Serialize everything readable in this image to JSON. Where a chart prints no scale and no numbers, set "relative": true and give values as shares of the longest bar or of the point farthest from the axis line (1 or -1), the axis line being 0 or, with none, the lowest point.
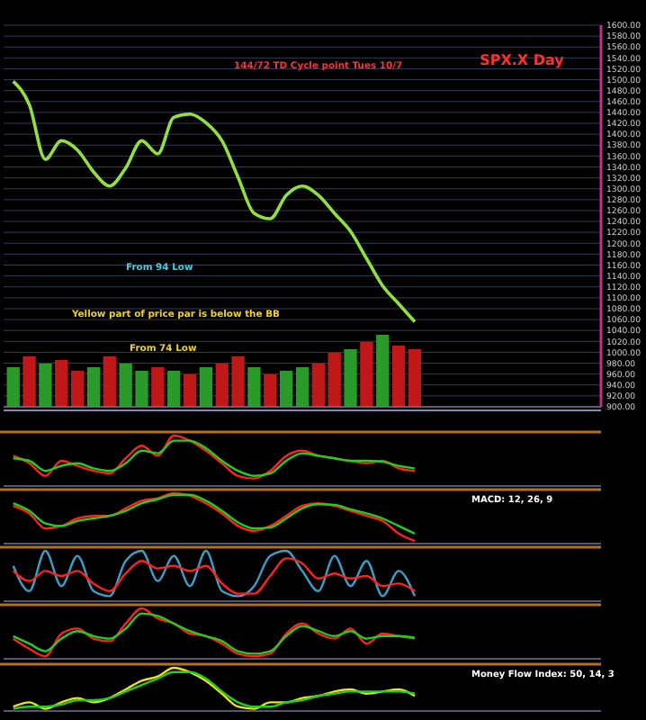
{
  "chart_data": [
    {
      "type": "line",
      "title": "SPX.X Day",
      "categories": [
        null,
        null,
        null,
        null,
        null,
        null,
        null,
        null,
        null,
        null,
        null,
        null,
        null,
        null,
        null,
        null,
        null,
        null,
        null,
        null,
        null,
        null,
        null,
        null,
        null,
        null,
        null,
        null,
        null,
        null,
        null,
        null,
        null,
        null,
        null,
        null,
        null
      ],
      "series": [
        {
          "color": "#8fe040",
          "values": [
            1497,
            1454,
            1354,
            1388,
            1371,
            1331,
            1305,
            1338,
            1388,
            1364,
            1431,
            1437,
            1421,
            1388,
            1321,
            1255,
            1245,
            1288,
            1305,
            1288,
            1255,
            1222,
            1172,
            1122,
            1089,
            1056,
            null,
            null,
            null,
            null,
            null,
            null,
            null,
            null,
            null,
            null,
            null
          ]
        }
      ],
      "ylim": [
        900,
        1600
      ],
      "yticks": [
        {
          "value": 900,
          "label": "900.00"
        },
        {
          "value": 920,
          "label": "920.00"
        },
        {
          "value": 940,
          "label": "940.00"
        },
        {
          "value": 960,
          "label": "960.00"
        },
        {
          "value": 980,
          "label": "980.00"
        },
        {
          "value": 1000,
          "label": "1000.00"
        },
        {
          "value": 1020,
          "label": "1020.00"
        },
        {
          "value": 1040,
          "label": "1040.00"
        },
        {
          "value": 1060,
          "label": "1060.00"
        },
        {
          "value": 1080,
          "label": "1080.00"
        },
        {
          "value": 1100,
          "label": "1100.00"
        },
        {
          "value": 1120,
          "label": "1120.00"
        },
        {
          "value": 1140,
          "label": "1140.00"
        },
        {
          "value": 1160,
          "label": "1160.00"
        },
        {
          "value": 1180,
          "label": "1180.00"
        },
        {
          "value": 1200,
          "label": "1200.00"
        },
        {
          "value": 1220,
          "label": "1220.00"
        },
        {
          "value": 1240,
          "label": "1240.00"
        },
        {
          "value": 1260,
          "label": "1260.00"
        },
        {
          "value": 1280,
          "label": "1280.00"
        },
        {
          "value": 1300,
          "label": "1300.00"
        },
        {
          "value": 1320,
          "label": "1320.00"
        },
        {
          "value": 1340,
          "label": "1340.00"
        },
        {
          "value": 1360,
          "label": "1360.00"
        },
        {
          "value": 1380,
          "label": "1380.00"
        },
        {
          "value": 1400,
          "label": "1400.00"
        },
        {
          "value": 1420,
          "label": "1420.00"
        },
        {
          "value": 1440,
          "label": "1440.00"
        },
        {
          "value": 1460,
          "label": "1460.00"
        },
        {
          "value": 1480,
          "label": "1480.00"
        },
        {
          "value": 1500,
          "label": "1500.00"
        },
        {
          "value": 1520,
          "label": "1520.00"
        },
        {
          "value": 1540,
          "label": "1540.00"
        },
        {
          "value": 1560,
          "label": "1560.00"
        },
        {
          "value": 1580,
          "label": "1580.00"
        },
        {
          "value": 1600,
          "label": "1600.00"
        }
      ],
      "grid": true,
      "annotations": [
        "144/72 TD Cycle point Tues 10/7",
        "Yellow part of price par is below the BB",
        "From 94 Low",
        "From 74 Low"
      ]
    },
    {
      "type": "bar",
      "relative": true,
      "categories": [
        null,
        null,
        null,
        null,
        null,
        null,
        null,
        null,
        null,
        null,
        null,
        null,
        null,
        null,
        null,
        null,
        null,
        null,
        null,
        null,
        null,
        null,
        null,
        null,
        null,
        null,
        null,
        null,
        null,
        null,
        null,
        null,
        null,
        null,
        null,
        null,
        null
      ],
      "values": [
        0.55,
        0.7,
        0.6,
        0.65,
        0.5,
        0.55,
        0.7,
        0.6,
        0.5,
        0.55,
        0.5,
        0.45,
        0.55,
        0.6,
        0.7,
        0.55,
        0.45,
        0.5,
        0.55,
        0.6,
        0.75,
        0.8,
        0.9,
        1,
        0.85,
        0.8,
        null,
        null,
        null,
        null,
        null,
        null,
        null,
        null,
        null,
        null,
        null
      ],
      "colors": [
        "#2a9a2a",
        "#c01818",
        "#2a9a2a",
        "#c01818",
        "#c01818",
        "#2a9a2a",
        "#c01818",
        "#2a9a2a",
        "#2a9a2a",
        "#c01818",
        "#2a9a2a",
        "#c01818",
        "#2a9a2a",
        "#c01818",
        "#c01818",
        "#2a9a2a",
        "#c01818",
        "#2a9a2a",
        "#2a9a2a",
        "#c01818",
        "#c01818",
        "#2a9a2a",
        "#c01818",
        "#2a9a2a",
        "#c01818",
        "#c01818",
        null,
        null,
        null,
        null,
        null,
        null,
        null,
        null,
        null,
        null,
        null
      ]
    },
    {
      "type": "line",
      "relative": true,
      "categories": [
        null,
        null,
        null,
        null,
        null,
        null,
        null,
        null,
        null,
        null,
        null,
        null,
        null,
        null,
        null,
        null,
        null,
        null,
        null,
        null,
        null,
        null,
        null,
        null,
        null,
        null,
        null,
        null,
        null,
        null,
        null,
        null,
        null,
        null,
        null,
        null,
        null
      ],
      "series": [
        {
          "color": "#ff2020",
          "values": [
            0.6,
            0.45,
            0.2,
            0.5,
            0.4,
            0.3,
            0.25,
            0.55,
            0.8,
            0.6,
            1,
            0.9,
            0.7,
            0.45,
            0.2,
            0.15,
            0.3,
            0.6,
            0.7,
            0.6,
            0.55,
            0.5,
            0.45,
            0.5,
            0.35,
            0.3,
            null,
            null,
            null,
            null,
            null,
            null,
            null,
            null,
            null,
            null,
            null
          ]
        },
        {
          "color": "#20d020",
          "values": [
            0.55,
            0.5,
            0.3,
            0.4,
            0.45,
            0.35,
            0.3,
            0.45,
            0.7,
            0.65,
            0.9,
            0.9,
            0.75,
            0.5,
            0.3,
            0.2,
            0.25,
            0.5,
            0.65,
            0.6,
            0.55,
            0.5,
            0.5,
            0.48,
            0.4,
            0.35,
            null,
            null,
            null,
            null,
            null,
            null,
            null,
            null,
            null,
            null,
            null
          ]
        }
      ]
    },
    {
      "type": "line",
      "title": "MACD: 12, 26, 9",
      "relative": true,
      "categories": [
        null,
        null,
        null,
        null,
        null,
        null,
        null,
        null,
        null,
        null,
        null,
        null,
        null,
        null,
        null,
        null,
        null,
        null,
        null,
        null,
        null,
        null,
        null,
        null,
        null,
        null,
        null,
        null,
        null,
        null,
        null,
        null,
        null,
        null,
        null,
        null,
        null
      ],
      "series": [
        {
          "color": "#ff2020",
          "values": [
            0.75,
            0.6,
            0.3,
            0.35,
            0.5,
            0.55,
            0.55,
            0.7,
            0.85,
            0.9,
            1,
            0.95,
            0.8,
            0.6,
            0.35,
            0.25,
            0.35,
            0.55,
            0.75,
            0.8,
            0.75,
            0.65,
            0.55,
            0.45,
            0.2,
            0.05,
            null,
            null,
            null,
            null,
            null,
            null,
            null,
            null,
            null,
            null,
            null
          ]
        },
        {
          "color": "#20d020",
          "values": [
            0.8,
            0.65,
            0.4,
            0.35,
            0.45,
            0.5,
            0.55,
            0.65,
            0.8,
            0.88,
            0.97,
            0.97,
            0.85,
            0.65,
            0.42,
            0.3,
            0.32,
            0.5,
            0.7,
            0.78,
            0.77,
            0.68,
            0.6,
            0.5,
            0.35,
            0.2,
            null,
            null,
            null,
            null,
            null,
            null,
            null,
            null,
            null,
            null,
            null
          ]
        }
      ]
    },
    {
      "type": "line",
      "relative": true,
      "categories": [
        null,
        null,
        null,
        null,
        null,
        null,
        null,
        null,
        null,
        null,
        null,
        null,
        null,
        null,
        null,
        null,
        null,
        null,
        null,
        null,
        null,
        null,
        null,
        null,
        null,
        null,
        null,
        null,
        null,
        null,
        null,
        null,
        null,
        null,
        null,
        null,
        null
      ],
      "series": [
        {
          "color": "#3aa0c8",
          "values": [
            0.7,
            0.2,
            1,
            0.3,
            0.9,
            0.2,
            0.1,
            0.8,
            1,
            0.4,
            0.9,
            0.3,
            1,
            0.2,
            0.1,
            0.3,
            0.9,
            1,
            0.6,
            0.2,
            0.9,
            0.3,
            0.8,
            0.1,
            0.6,
            0.1,
            null,
            null,
            null,
            null,
            null,
            null,
            null,
            null,
            null,
            null,
            null
          ]
        },
        {
          "color": "#ff2020",
          "values": [
            0.6,
            0.4,
            0.6,
            0.5,
            0.6,
            0.35,
            0.2,
            0.55,
            0.8,
            0.65,
            0.7,
            0.6,
            0.7,
            0.35,
            0.15,
            0.15,
            0.5,
            0.85,
            0.75,
            0.45,
            0.55,
            0.45,
            0.5,
            0.3,
            0.35,
            0.2,
            null,
            null,
            null,
            null,
            null,
            null,
            null,
            null,
            null,
            null,
            null
          ]
        }
      ]
    },
    {
      "type": "line",
      "relative": true,
      "categories": [
        null,
        null,
        null,
        null,
        null,
        null,
        null,
        null,
        null,
        null,
        null,
        null,
        null,
        null,
        null,
        null,
        null,
        null,
        null,
        null,
        null,
        null,
        null,
        null,
        null,
        null,
        null,
        null,
        null,
        null,
        null,
        null,
        null,
        null,
        null,
        null,
        null
      ],
      "series": [
        {
          "color": "#ff2020",
          "values": [
            0.4,
            0.2,
            0.05,
            0.5,
            0.6,
            0.4,
            0.35,
            0.7,
            1,
            0.8,
            0.7,
            0.5,
            0.45,
            0.3,
            0.1,
            0.05,
            0.1,
            0.5,
            0.7,
            0.5,
            0.4,
            0.6,
            0.3,
            0.5,
            0.45,
            0.4,
            null,
            null,
            null,
            null,
            null,
            null,
            null,
            null,
            null,
            null,
            null
          ]
        },
        {
          "color": "#20d020",
          "values": [
            0.45,
            0.3,
            0.15,
            0.4,
            0.55,
            0.45,
            0.4,
            0.6,
            0.9,
            0.85,
            0.7,
            0.55,
            0.45,
            0.35,
            0.15,
            0.1,
            0.15,
            0.45,
            0.65,
            0.55,
            0.45,
            0.55,
            0.4,
            0.45,
            0.45,
            0.42,
            null,
            null,
            null,
            null,
            null,
            null,
            null,
            null,
            null,
            null,
            null
          ]
        }
      ]
    },
    {
      "type": "line",
      "title": "Money Flow Index: 50, 14, 3",
      "relative": true,
      "categories": [
        null,
        null,
        null,
        null,
        null,
        null,
        null,
        null,
        null,
        null,
        null,
        null,
        null,
        null,
        null,
        null,
        null,
        null,
        null,
        null,
        null,
        null,
        null,
        null,
        null,
        null,
        null,
        null,
        null,
        null,
        null,
        null,
        null,
        null,
        null,
        null,
        null
      ],
      "series": [
        {
          "color": "#f0e020",
          "values": [
            0.1,
            0.2,
            0.05,
            0.2,
            0.3,
            0.2,
            0.3,
            0.5,
            0.7,
            0.8,
            1,
            0.9,
            0.7,
            0.4,
            0.1,
            0.05,
            0.2,
            0.2,
            0.3,
            0.35,
            0.45,
            0.5,
            0.4,
            0.45,
            0.5,
            0.35,
            null,
            null,
            null,
            null,
            null,
            null,
            null,
            null,
            null,
            null,
            null
          ]
        },
        {
          "color": "#20d020",
          "values": [
            0.05,
            0.1,
            0.1,
            0.15,
            0.25,
            0.25,
            0.3,
            0.45,
            0.6,
            0.75,
            0.9,
            0.9,
            0.75,
            0.45,
            0.2,
            0.1,
            0.1,
            0.2,
            0.25,
            0.35,
            0.4,
            0.45,
            0.45,
            0.45,
            0.45,
            0.4,
            null,
            null,
            null,
            null,
            null,
            null,
            null,
            null,
            null,
            null,
            null
          ]
        }
      ]
    }
  ]
}
